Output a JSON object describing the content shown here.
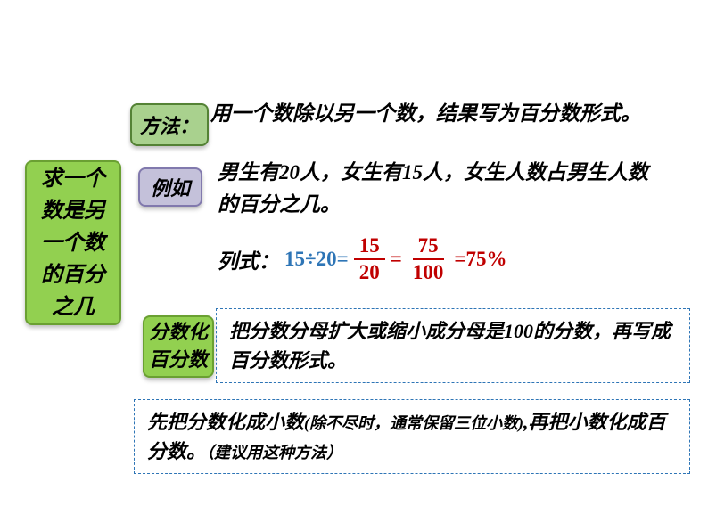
{
  "main_box": {
    "text": "求一个数是另一个数的百分之几",
    "bg_color": "#92d050",
    "border_color": "#6aa032",
    "fontsize": 24
  },
  "tag_method": {
    "label": "方法：",
    "bg_color": "#a9d18e",
    "border_color": "#548235",
    "fontsize": 22
  },
  "tag_example": {
    "label": "例如",
    "bg_color": "#c4c1da",
    "border_color": "#8179ad",
    "fontsize": 22
  },
  "tag_convert": {
    "label": "分数化百分数",
    "bg_color": "#92d050",
    "border_color": "#6aa032",
    "fontsize": 22
  },
  "method_text": "用一个数除以另一个数，结果写为百分数形式。",
  "example_text": "男生有20人，女生有15人，女生人数占男生人数的百分之几。",
  "formula": {
    "label": "列式：",
    "expr": "15÷20=",
    "frac1_num": "15",
    "frac1_den": "20",
    "eq1": " = ",
    "frac2_num": "75",
    "frac2_den": "100",
    "eq2": " =",
    "result": "75%",
    "label_color": "#000000",
    "expr_color": "#2e75b6",
    "frac_color": "#c00000",
    "fontsize": 23
  },
  "dashed1_text": "把分数分母扩大或缩小成分母是100的分数，再写成百分数形式。",
  "dashed2": {
    "part1": "先把分数化成小数",
    "paren1": "(除不尽时，通常保留三位小数)",
    "part2": ",再把小数化成百分数。",
    "paren2": "（建议用这种方法）"
  },
  "dashed_border_color": "#2e75b6",
  "body_fontsize": 23,
  "background_color": "#ffffff"
}
